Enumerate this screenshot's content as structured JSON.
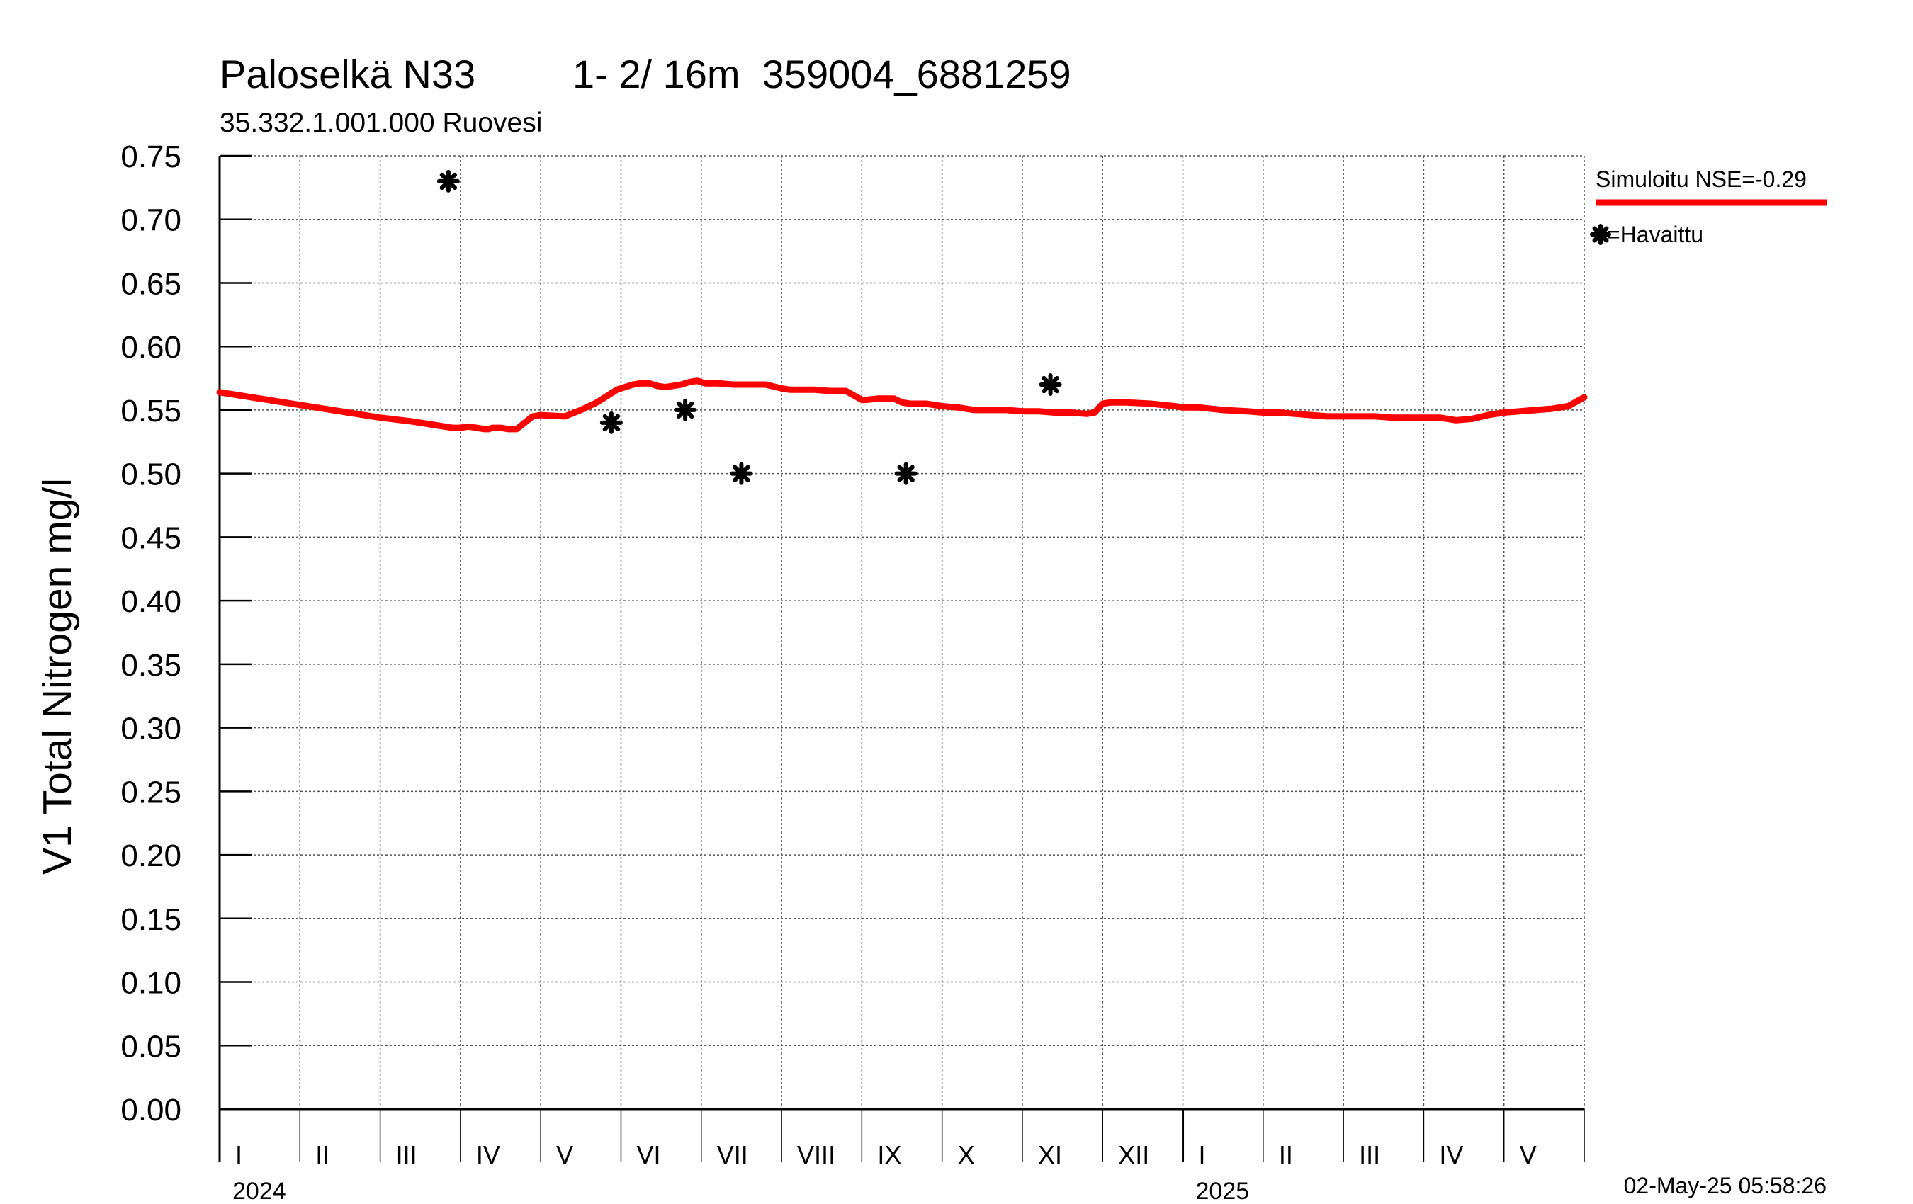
{
  "chart_data": {
    "type": "line",
    "title": "Paloselkä N33",
    "title_detail": "1- 2/ 16m  359004_6881259",
    "subtitle": "35.332.1.001.000 Ruovesi",
    "ylabel": "V1 Total Nitrogen mg/l",
    "xlabel": "",
    "ylim": [
      0,
      0.75
    ],
    "y_ticks": [
      "0.00",
      "0.05",
      "0.10",
      "0.15",
      "0.20",
      "0.25",
      "0.30",
      "0.35",
      "0.40",
      "0.45",
      "0.50",
      "0.55",
      "0.60",
      "0.65",
      "0.70",
      "0.75"
    ],
    "x_range_months": [
      0,
      17
    ],
    "month_labels": [
      "I",
      "II",
      "III",
      "IV",
      "V",
      "VI",
      "VII",
      "VIII",
      "IX",
      "X",
      "XI",
      "XII",
      "I",
      "II",
      "III",
      "IV",
      "V"
    ],
    "year_labels": [
      {
        "label": "2024",
        "month": 0
      },
      {
        "label": "2025",
        "month": 12
      }
    ],
    "grid": true,
    "legend_position": "right",
    "timestamp": "02-May-25 05:58:26",
    "series": [
      {
        "name": "Simuloitu NSE=-0.29",
        "kind": "line",
        "color": "#ff0000",
        "x": [
          0.0,
          0.4,
          0.8,
          1.2,
          1.6,
          2.0,
          2.4,
          2.5,
          2.7,
          2.9,
          3.0,
          3.1,
          3.2,
          3.3,
          3.35,
          3.4,
          3.45,
          3.5,
          3.6,
          3.7,
          3.8,
          3.9,
          4.0,
          4.3,
          4.5,
          4.7,
          4.85,
          4.95,
          5.05,
          5.15,
          5.25,
          5.35,
          5.45,
          5.55,
          5.65,
          5.75,
          5.85,
          5.95,
          6.05,
          6.2,
          6.4,
          6.6,
          6.8,
          7.0,
          7.1,
          7.2,
          7.4,
          7.6,
          7.8,
          8.0,
          8.05,
          8.2,
          8.4,
          8.5,
          8.6,
          8.8,
          9.0,
          9.2,
          9.4,
          9.6,
          9.8,
          10.0,
          10.2,
          10.4,
          10.6,
          10.8,
          10.9,
          11.0,
          11.1,
          11.3,
          11.6,
          11.9,
          12.0,
          12.2,
          12.5,
          12.8,
          13.0,
          13.2,
          13.4,
          13.6,
          13.8,
          14.0,
          14.2,
          14.4,
          14.6,
          14.8,
          15.0,
          15.2,
          15.4,
          15.6,
          15.8,
          16.0,
          16.2,
          16.4,
          16.6,
          16.8,
          17.0
        ],
        "values": [
          0.564,
          0.56,
          0.556,
          0.552,
          0.548,
          0.544,
          0.541,
          0.54,
          0.538,
          0.536,
          0.536,
          0.537,
          0.536,
          0.535,
          0.535,
          0.536,
          0.536,
          0.536,
          0.535,
          0.535,
          0.54,
          0.545,
          0.546,
          0.545,
          0.55,
          0.556,
          0.562,
          0.566,
          0.568,
          0.57,
          0.571,
          0.571,
          0.569,
          0.568,
          0.569,
          0.57,
          0.572,
          0.573,
          0.571,
          0.571,
          0.57,
          0.57,
          0.57,
          0.567,
          0.566,
          0.566,
          0.566,
          0.565,
          0.565,
          0.558,
          0.558,
          0.559,
          0.559,
          0.556,
          0.555,
          0.555,
          0.553,
          0.552,
          0.55,
          0.55,
          0.55,
          0.549,
          0.549,
          0.548,
          0.548,
          0.547,
          0.548,
          0.555,
          0.556,
          0.556,
          0.555,
          0.553,
          0.552,
          0.552,
          0.55,
          0.549,
          0.548,
          0.548,
          0.547,
          0.546,
          0.545,
          0.545,
          0.545,
          0.545,
          0.544,
          0.544,
          0.544,
          0.544,
          0.542,
          0.543,
          0.546,
          0.548,
          0.549,
          0.55,
          0.551,
          0.553,
          0.56
        ]
      },
      {
        "name": "=Havaittu",
        "kind": "marker",
        "color": "#000000",
        "x": [
          2.85,
          4.88,
          5.8,
          6.5,
          8.55,
          10.35
        ],
        "values": [
          0.73,
          0.54,
          0.55,
          0.5,
          0.5,
          0.57
        ]
      }
    ]
  }
}
